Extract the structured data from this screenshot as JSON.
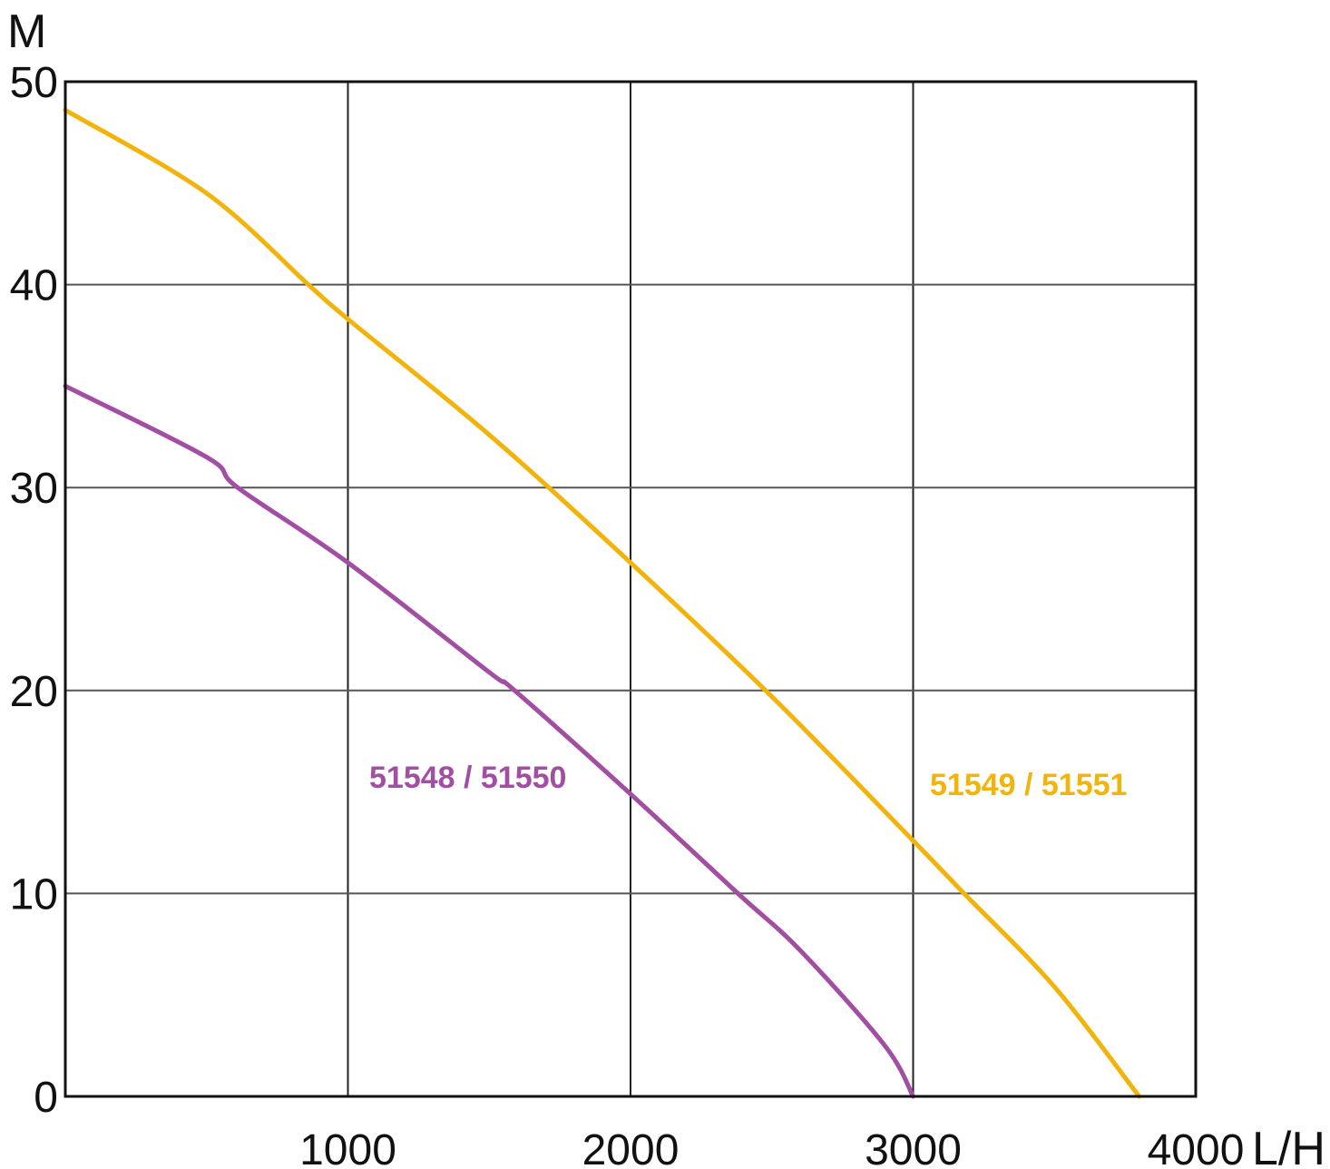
{
  "chart_data": {
    "type": "line",
    "ylabel": "M",
    "xlabel": "L/H",
    "xlim": [
      0,
      4000
    ],
    "ylim": [
      0,
      50
    ],
    "x_ticks": [
      "1000",
      "2000",
      "3000",
      "4000"
    ],
    "y_ticks": [
      "0",
      "10",
      "20",
      "30",
      "40",
      "50"
    ],
    "grid": true,
    "series": [
      {
        "name": "51549 / 51551",
        "color": "#F2B30A",
        "x": [
          0,
          500,
          860,
          1000,
          1500,
          2000,
          2500,
          3000,
          3180,
          3500,
          3800
        ],
        "y": [
          48.6,
          44.5,
          40,
          38.3,
          32.6,
          26.3,
          19.7,
          12.6,
          10,
          5.4,
          0
        ]
      },
      {
        "name": "51548 / 51550",
        "color": "#A24EA2",
        "x": [
          0,
          500,
          610,
          1000,
          1500,
          1590,
          2000,
          2380,
          2600,
          2900,
          3000
        ],
        "y": [
          35,
          31.5,
          30,
          26.3,
          20.9,
          20,
          14.9,
          10,
          7.2,
          2.5,
          0
        ]
      }
    ]
  }
}
